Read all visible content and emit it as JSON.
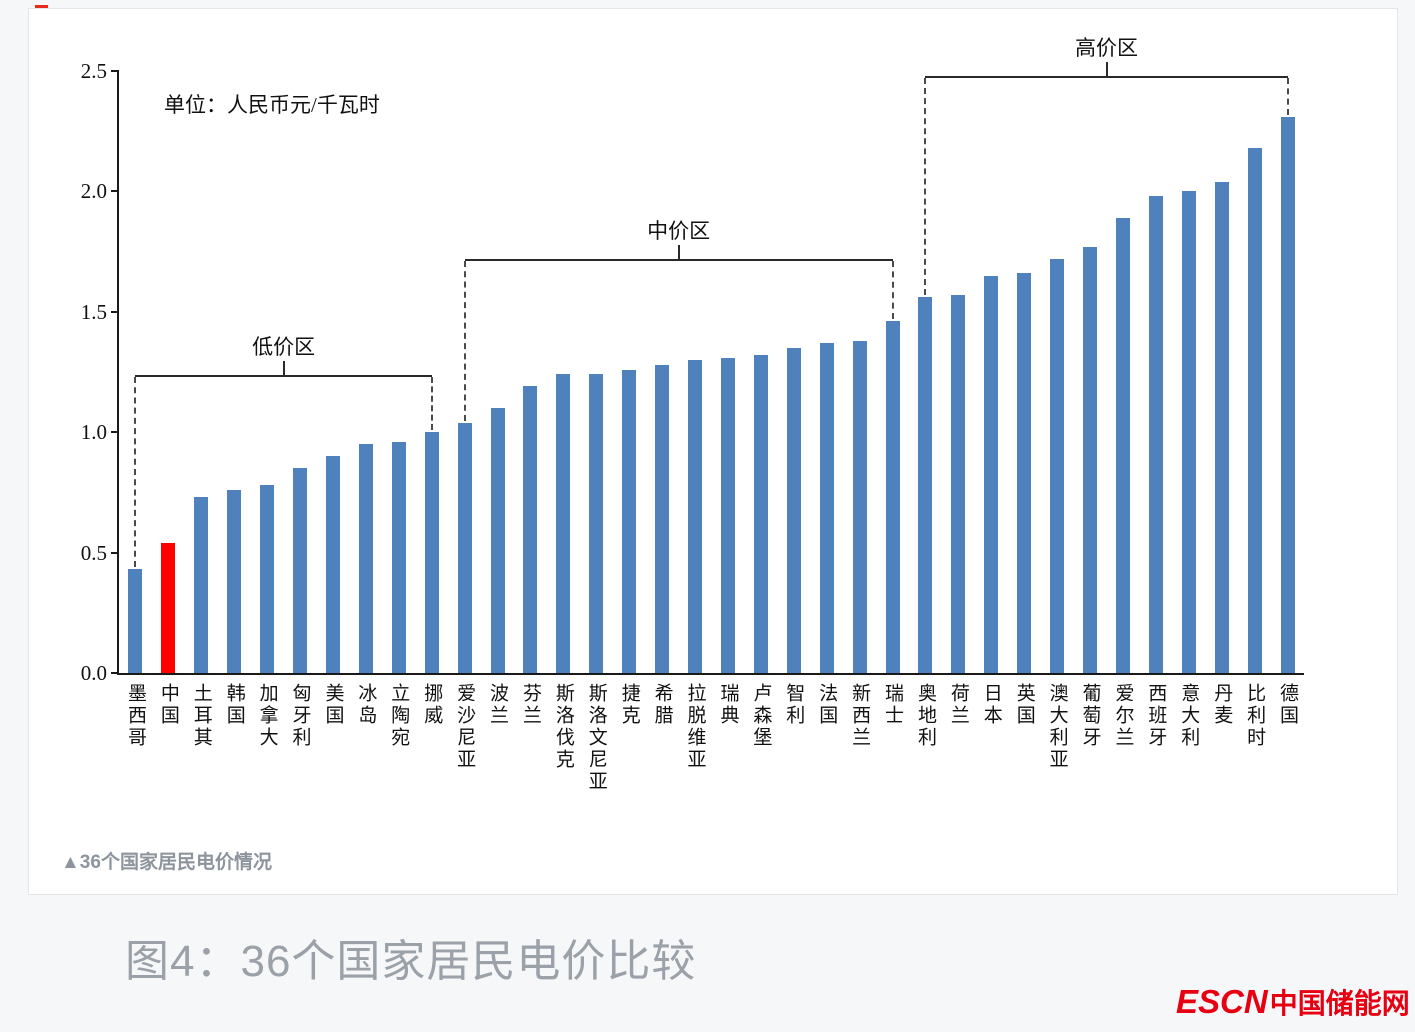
{
  "page": {
    "caption": "▲36个国家居民电价情况",
    "title": "图4：36个国家居民电价比较",
    "logo": {
      "latin": "ESCN",
      "cjk": "中国储能网",
      "color": "#e60012"
    }
  },
  "chart_data": {
    "type": "bar",
    "title": "36个国家居民电价情况",
    "unit_label": "单位：人民币元/千瓦时",
    "xlabel": "",
    "ylabel": "",
    "ylim": [
      0,
      2.5
    ],
    "ytick_labels": [
      "0.0",
      "0.5",
      "1.0",
      "1.5",
      "2.0",
      "2.5"
    ],
    "grid": false,
    "bar_color": "#4f81bd",
    "highlight_color": "#ff0000",
    "highlight_index": 1,
    "categories": [
      "墨西哥",
      "中国",
      "土耳其",
      "韩国",
      "加拿大",
      "匈牙利",
      "美国",
      "冰岛",
      "立陶宛",
      "挪威",
      "爱沙尼亚",
      "波兰",
      "芬兰",
      "斯洛伐克",
      "斯洛文尼亚",
      "捷克",
      "希腊",
      "拉脱维亚",
      "瑞典",
      "卢森堡",
      "智利",
      "法国",
      "新西兰",
      "瑞士",
      "奥地利",
      "荷兰",
      "日本",
      "英国",
      "澳大利亚",
      "葡萄牙",
      "爱尔兰",
      "西班牙",
      "意大利",
      "丹麦",
      "比利时",
      "德国"
    ],
    "values": [
      0.43,
      0.54,
      0.73,
      0.76,
      0.78,
      0.85,
      0.9,
      0.95,
      0.96,
      1.0,
      1.04,
      1.1,
      1.19,
      1.24,
      1.24,
      1.26,
      1.28,
      1.3,
      1.31,
      1.32,
      1.35,
      1.37,
      1.38,
      1.46,
      1.56,
      1.57,
      1.65,
      1.66,
      1.72,
      1.77,
      1.89,
      1.98,
      2.0,
      2.04,
      2.18,
      2.31
    ],
    "zones": [
      {
        "label": "低价区",
        "start": 0,
        "end": 9,
        "line_value": 1.23
      },
      {
        "label": "中价区",
        "start": 10,
        "end": 23,
        "line_value": 1.71
      },
      {
        "label": "高价区",
        "start": 24,
        "end": 35,
        "line_value": 2.47
      }
    ]
  }
}
